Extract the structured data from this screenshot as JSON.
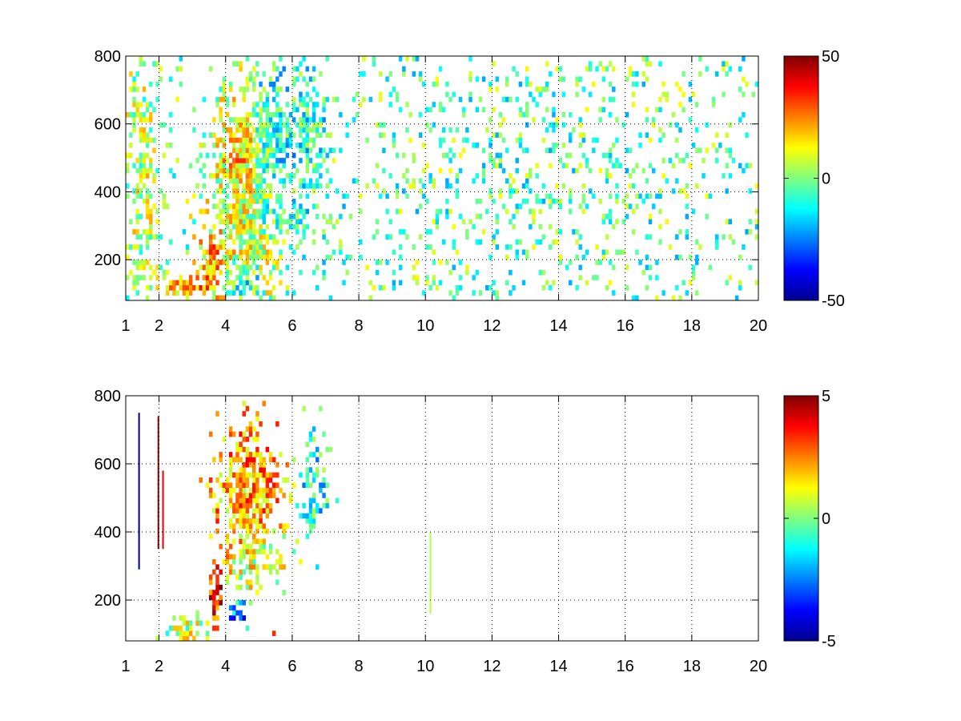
{
  "chart_data": [
    {
      "type": "heatmap",
      "title": "",
      "xlabel": "",
      "ylabel": "",
      "xlim": [
        1,
        20
      ],
      "ylim": [
        80,
        800
      ],
      "x_ticks": [
        1,
        2,
        4,
        6,
        8,
        10,
        12,
        14,
        16,
        18,
        20
      ],
      "x_tick_labels": [
        "1",
        "2",
        "4",
        "6",
        "8",
        "10",
        "12",
        "14",
        "16",
        "18",
        "20"
      ],
      "y_ticks": [
        200,
        400,
        600,
        800
      ],
      "y_tick_labels": [
        "200",
        "400",
        "600",
        "800"
      ],
      "grid": true,
      "colormap": "jet",
      "color_range": [
        -50,
        50
      ],
      "colorbar_ticks": [
        -50,
        0,
        50
      ],
      "colorbar_tick_labels": [
        "-50",
        "0",
        "50"
      ],
      "features": [
        {
          "x": 1.5,
          "y": 440,
          "sx": 0.45,
          "sy": 300,
          "value": 6,
          "density": 0.5
        },
        {
          "x": 2.7,
          "y": 120,
          "sx": 0.55,
          "sy": 22,
          "value": 30,
          "density": 0.95
        },
        {
          "x": 3.6,
          "y": 190,
          "sx": 0.25,
          "sy": 70,
          "value": 28,
          "density": 0.9
        },
        {
          "x": 4.6,
          "y": 520,
          "sx": 0.35,
          "sy": 70,
          "value": 40,
          "density": 0.98
        },
        {
          "x": 4.6,
          "y": 370,
          "sx": 0.7,
          "sy": 240,
          "value": 15,
          "density": 0.9
        },
        {
          "x": 5.3,
          "y": 560,
          "sx": 0.5,
          "sy": 120,
          "value": -25,
          "density": 0.85
        },
        {
          "x": 4.5,
          "y": 140,
          "sx": 0.35,
          "sy": 30,
          "value": -30,
          "density": 0.8
        },
        {
          "x": 5.8,
          "y": 310,
          "sx": 0.55,
          "sy": 40,
          "value": -15,
          "density": 0.7
        },
        {
          "x": 6.4,
          "y": 560,
          "sx": 0.5,
          "sy": 130,
          "value": -12,
          "density": 0.65
        },
        {
          "x": 13.5,
          "y": 450,
          "sx": 6.5,
          "sy": 400,
          "value": -4,
          "density": 0.18
        }
      ]
    },
    {
      "type": "heatmap",
      "title": "",
      "xlabel": "",
      "ylabel": "",
      "xlim": [
        1,
        20
      ],
      "ylim": [
        80,
        800
      ],
      "x_ticks": [
        1,
        2,
        4,
        6,
        8,
        10,
        12,
        14,
        16,
        18,
        20
      ],
      "x_tick_labels": [
        "1",
        "2",
        "4",
        "6",
        "8",
        "10",
        "12",
        "14",
        "16",
        "18",
        "20"
      ],
      "y_ticks": [
        200,
        400,
        600,
        800
      ],
      "y_tick_labels": [
        "200",
        "400",
        "600",
        "800"
      ],
      "grid": true,
      "colormap": "jet",
      "color_range": [
        -5,
        5
      ],
      "colorbar_ticks": [
        -5,
        0,
        5
      ],
      "colorbar_tick_labels": [
        "-5",
        "0",
        "5"
      ],
      "features": [
        {
          "x": 3.0,
          "y": 115,
          "sx": 0.45,
          "sy": 20,
          "value": 0.6,
          "density": 0.85
        },
        {
          "x": 3.7,
          "y": 220,
          "sx": 0.15,
          "sy": 60,
          "value": 3.5,
          "density": 0.8
        },
        {
          "x": 4.7,
          "y": 500,
          "sx": 0.55,
          "sy": 130,
          "value": 2.2,
          "density": 0.9
        },
        {
          "x": 4.9,
          "y": 320,
          "sx": 0.5,
          "sy": 50,
          "value": 0.4,
          "density": 0.75
        },
        {
          "x": 4.4,
          "y": 160,
          "sx": 0.2,
          "sy": 20,
          "value": -2.5,
          "density": 0.7
        },
        {
          "x": 6.6,
          "y": 520,
          "sx": 0.3,
          "sy": 90,
          "value": -1.2,
          "density": 0.55
        }
      ],
      "streaks": [
        {
          "x": 1.4,
          "y0": 290,
          "y1": 750,
          "value": -5
        },
        {
          "x": 1.98,
          "y0": 350,
          "y1": 740,
          "value": 5
        },
        {
          "x": 2.12,
          "y0": 350,
          "y1": 580,
          "value": 4
        },
        {
          "x": 10.15,
          "y0": 160,
          "y1": 400,
          "value": 0.5
        }
      ]
    }
  ]
}
